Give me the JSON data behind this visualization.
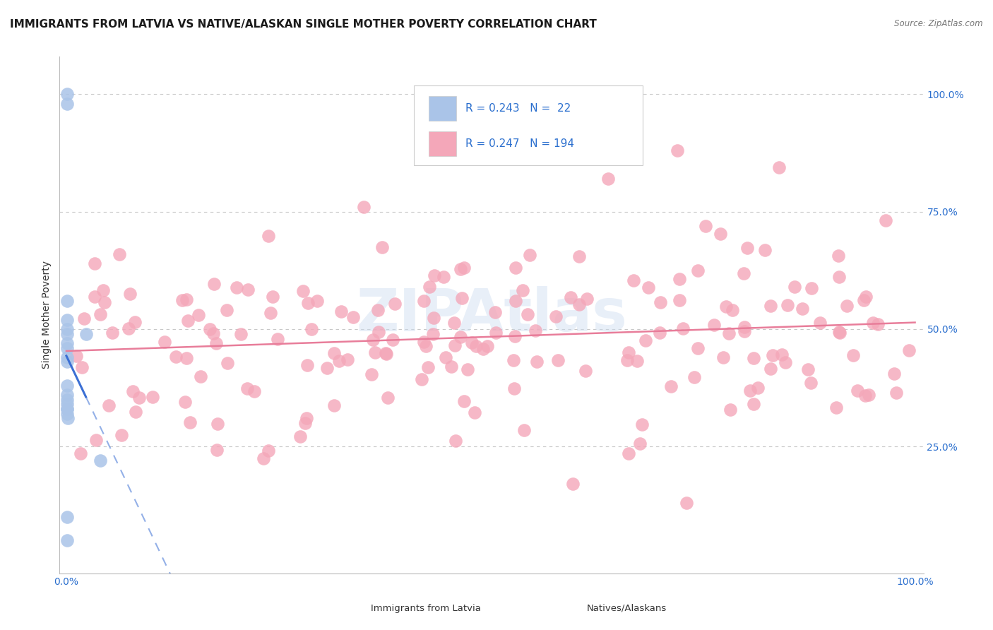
{
  "title": "IMMIGRANTS FROM LATVIA VS NATIVE/ALASKAN SINGLE MOTHER POVERTY CORRELATION CHART",
  "source": "Source: ZipAtlas.com",
  "ylabel": "Single Mother Poverty",
  "legend_blue_R": "0.243",
  "legend_blue_N": "22",
  "legend_pink_R": "0.247",
  "legend_pink_N": "194",
  "legend_label1": "Immigrants from Latvia",
  "legend_label2": "Natives/Alaskans",
  "blue_x": [
    0.0008,
    0.0009,
    0.001,
    0.0011,
    0.0012,
    0.0008,
    0.0009,
    0.001,
    0.0011,
    0.0008,
    0.0009,
    0.001,
    0.0011,
    0.0012,
    0.0009,
    0.001,
    0.0011,
    0.0015,
    0.023,
    0.04,
    0.0008,
    0.001
  ],
  "blue_y": [
    1.0,
    0.98,
    0.56,
    0.52,
    0.5,
    0.49,
    0.47,
    0.46,
    0.44,
    0.43,
    0.38,
    0.36,
    0.35,
    0.34,
    0.33,
    0.33,
    0.32,
    0.31,
    0.49,
    0.22,
    0.1,
    0.05
  ],
  "blue_color": "#aac4e8",
  "pink_color": "#f4a7b9",
  "blue_line_color": "#3b6fd4",
  "pink_line_color": "#e87d9a",
  "watermark": "ZIPAtlas",
  "background_color": "#ffffff",
  "grid_color": "#c8c8c8"
}
